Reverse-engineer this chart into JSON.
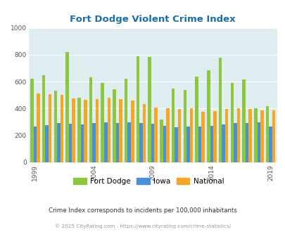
{
  "title": "Fort Dodge Violent Crime Index",
  "years": [
    1999,
    2000,
    2001,
    2002,
    2003,
    2004,
    2005,
    2006,
    2007,
    2008,
    2009,
    2010,
    2011,
    2012,
    2013,
    2014,
    2015,
    2016,
    2017,
    2018,
    2019
  ],
  "fort_dodge": [
    620,
    650,
    535,
    820,
    480,
    630,
    590,
    545,
    620,
    790,
    785,
    320,
    550,
    540,
    635,
    685,
    780,
    590,
    615,
    400,
    420
  ],
  "iowa": [
    265,
    275,
    290,
    285,
    280,
    295,
    300,
    295,
    300,
    290,
    285,
    270,
    260,
    265,
    265,
    270,
    280,
    290,
    295,
    300,
    265
  ],
  "national": [
    510,
    505,
    500,
    475,
    465,
    470,
    480,
    470,
    460,
    435,
    410,
    400,
    395,
    400,
    375,
    380,
    395,
    400,
    395,
    385,
    385
  ],
  "fort_dodge_color": "#8dc63f",
  "iowa_color": "#4a90d9",
  "national_color": "#f5a623",
  "bg_color": "#deeef0",
  "ylim": [
    0,
    1000
  ],
  "yticks": [
    0,
    200,
    400,
    600,
    800,
    1000
  ],
  "xlabel_ticks": [
    1999,
    2004,
    2009,
    2014,
    2019
  ],
  "legend_labels": [
    "Fort Dodge",
    "Iowa",
    "National"
  ],
  "footnote1": "Crime Index corresponds to incidents per 100,000 inhabitants",
  "footnote2": "© 2025 CityRating.com - https://www.cityrating.com/crime-statistics/",
  "title_color": "#1a6fa8",
  "footnote1_color": "#333333",
  "footnote2_color": "#999999"
}
